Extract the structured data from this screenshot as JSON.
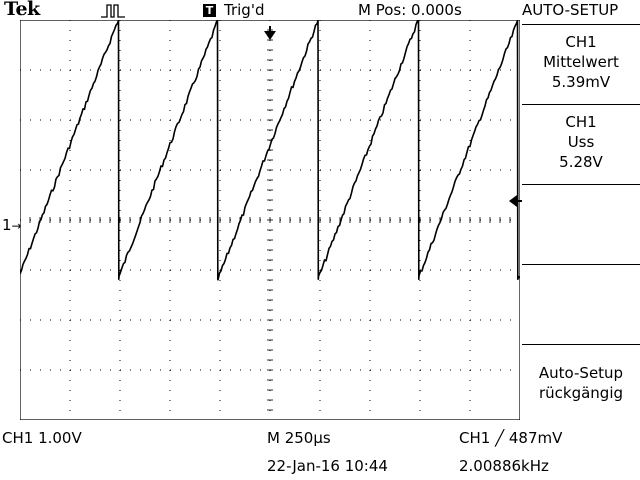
{
  "header": {
    "brand": "Tek",
    "run_state_icon": "acquisition-run-icon",
    "trigger_badge": "T",
    "trigger_status": "Trig'd",
    "main_position": "M Pos: 0.000s",
    "autosetup_title": "AUTO-SETUP"
  },
  "side_menu": {
    "item1": {
      "channel": "CH1",
      "measure": "Mittelwert",
      "value": "5.39mV"
    },
    "item2": {
      "channel": "CH1",
      "measure": "Uss",
      "value": "5.28V"
    },
    "undo": {
      "line1": "Auto-Setup",
      "line2": "rückgängig"
    }
  },
  "screen": {
    "channel_marker": "1",
    "trigger_position_icon": "trigger-position-arrow-icon",
    "trigger_level_icon": "trigger-level-arrow-icon",
    "grid": true
  },
  "footer": {
    "ch1_scale": "CH1  1.00V",
    "timebase": "M 250µs",
    "trigger_info": "CH1  ╱  487mV",
    "date_time": "22-Jan-16 10:44",
    "frequency": "2.00886kHz"
  },
  "waveform": {
    "type": "sawtooth",
    "channel": "CH1",
    "volts_per_div": 1.0,
    "time_per_div_us": 250,
    "cycles_visible": 5,
    "frequency_khz": 2.00886,
    "peak_to_peak_v": 5.28,
    "mean_mv": 5.39,
    "color": "#000000"
  }
}
